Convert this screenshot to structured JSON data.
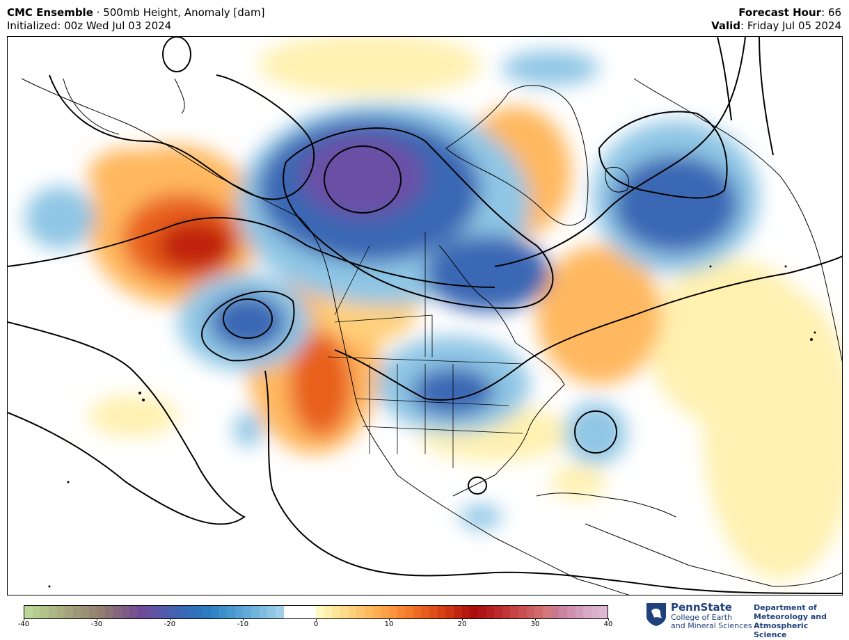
{
  "header": {
    "model": "CMC Ensemble",
    "separator": " · ",
    "product": "500mb Height, Anomaly [dam]",
    "initialized_label": "Initialized: 00z Wed Jul 03 2024",
    "forecast_hour_label": "Forecast Hour",
    "forecast_hour_value": ": 66",
    "valid_label": "Valid",
    "valid_value": ": Friday Jul 05 2024"
  },
  "colorbar": {
    "min": -40,
    "max": 40,
    "ticks": [
      "-40",
      "-30",
      "-20",
      "-10",
      "0",
      "10",
      "20",
      "30",
      "40"
    ],
    "colors": [
      "#bcd698",
      "#b6cc91",
      "#b1c28a",
      "#acb884",
      "#a8ae80",
      "#a3a47c",
      "#9e9a78",
      "#9a9175",
      "#968772",
      "#937e70",
      "#8c7275",
      "#85677d",
      "#7e5c86",
      "#77528f",
      "#6f4b97",
      "#6650a0",
      "#5b56a6",
      "#4f5cab",
      "#4562b0",
      "#3b68b4",
      "#346eb8",
      "#2e74bc",
      "#2d7cc0",
      "#3384c4",
      "#3c8ec9",
      "#4897ce",
      "#55a1d3",
      "#62abd8",
      "#70b4dc",
      "#7fbde0",
      "#8fc6e5",
      "#9fcfe9",
      "#ffffff",
      "#ffffff",
      "#ffffff",
      "#ffffff",
      "#fff7c0",
      "#ffefaa",
      "#ffe59a",
      "#ffdb8a",
      "#ffd07c",
      "#ffc56e",
      "#ffba61",
      "#ffae54",
      "#ffa148",
      "#fc943d",
      "#f88733",
      "#f3792b",
      "#ed6b24",
      "#e65d1e",
      "#de4f19",
      "#d54115",
      "#cb3312",
      "#c0250f",
      "#b5180d",
      "#ab0d0c",
      "#b01515",
      "#b61f1f",
      "#bb2a2a",
      "#c03636",
      "#c44343",
      "#c85050",
      "#cc5d5d",
      "#d06b6b",
      "#d47979",
      "#c8788c",
      "#cc84a0",
      "#d090b0",
      "#d49cbc",
      "#d8a8c6",
      "#dbb2ce",
      "#deb8d2"
    ]
  },
  "map": {
    "anomaly_colors": {
      "strong_negative": "#6a4fa5",
      "negative": "#3b68b4",
      "weak_negative": "#8fc6e5",
      "weak_positive": "#fff1b0",
      "positive": "#ffb85e",
      "strong_positive": "#e8601f",
      "very_strong_positive": "#c0200f"
    }
  },
  "branding": {
    "university": "PennState",
    "college_line1": "College of Earth",
    "college_line2": "and Mineral Sciences",
    "dept_line1": "Department of",
    "dept_line2": "Meteorology and",
    "dept_line3": "Atmospheric Science",
    "brand_color": "#1e407c"
  }
}
